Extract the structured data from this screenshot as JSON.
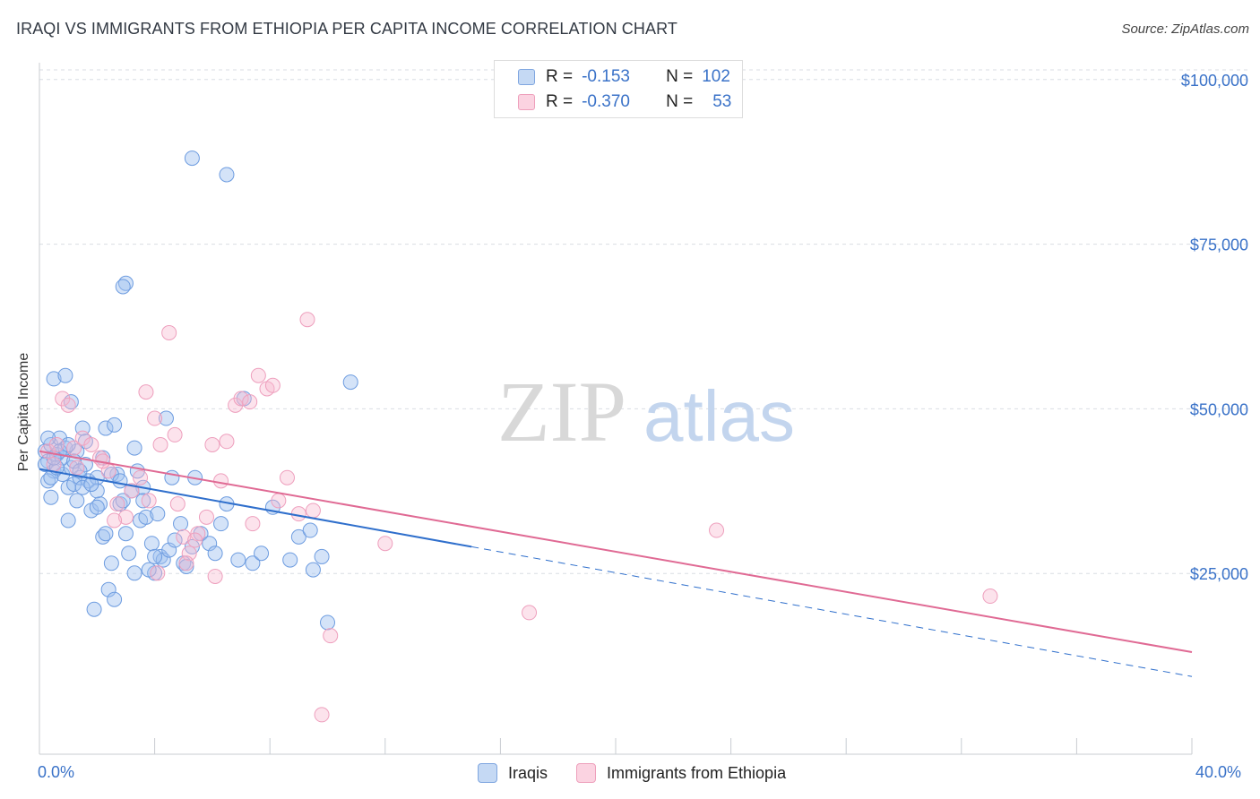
{
  "title": "IRAQI VS IMMIGRANTS FROM ETHIOPIA PER CAPITA INCOME CORRELATION CHART",
  "source": "Source: ZipAtlas.com",
  "watermark": {
    "zip": "ZIP",
    "atlas": "atlas"
  },
  "legend": {
    "series1": {
      "r_label": "R =",
      "r_value": "-0.153",
      "n_label": "N =",
      "n_value": "102"
    },
    "series2": {
      "r_label": "R =",
      "r_value": "-0.370",
      "n_label": "N =",
      "n_value": "53"
    }
  },
  "colors": {
    "iraqi": "#8fb4e8",
    "iraqi_line": "#2f6fcc",
    "ethiopia": "#f4aac4",
    "ethiopia_line": "#e06a94",
    "axis_label": "#3a72c8",
    "grid": "#d9dde3"
  },
  "chart_data": {
    "type": "scatter",
    "title": "IRAQI VS IMMIGRANTS FROM ETHIOPIA PER CAPITA INCOME CORRELATION CHART",
    "xlabel": "",
    "ylabel": "Per Capita Income",
    "xlim": [
      0,
      40
    ],
    "ylim": [
      0,
      105000
    ],
    "x_tick_labels": [
      "0.0%",
      "40.0%"
    ],
    "y_ticks": [
      25000,
      50000,
      75000,
      100000
    ],
    "y_tick_labels": [
      "$25,000",
      "$50,000",
      "$75,000",
      "$100,000"
    ],
    "legend_bottom": [
      "Iraqis",
      "Immigrants from Ethiopia"
    ],
    "series": [
      {
        "name": "Iraqis",
        "r": -0.153,
        "n": 102,
        "trend": {
          "x0": 0.0,
          "y0": 43300,
          "x1": 15.0,
          "y1": 31500,
          "dash_to_x": 40.0,
          "dash_to_y": 11800
        },
        "points": [
          [
            0.2,
            46000
          ],
          [
            0.3,
            44500
          ],
          [
            0.4,
            47000
          ],
          [
            0.5,
            43000
          ],
          [
            0.3,
            41500
          ],
          [
            0.6,
            45500
          ],
          [
            0.7,
            48000
          ],
          [
            0.8,
            42500
          ],
          [
            0.5,
            57000
          ],
          [
            0.9,
            57500
          ],
          [
            1.0,
            40500
          ],
          [
            1.1,
            43500
          ],
          [
            1.2,
            41000
          ],
          [
            1.3,
            38500
          ],
          [
            1.0,
            35500
          ],
          [
            1.4,
            42000
          ],
          [
            1.5,
            49500
          ],
          [
            1.1,
            53500
          ],
          [
            1.6,
            44000
          ],
          [
            1.8,
            37000
          ],
          [
            1.7,
            41500
          ],
          [
            2.0,
            42000
          ],
          [
            2.1,
            38000
          ],
          [
            2.2,
            33000
          ],
          [
            1.9,
            22000
          ],
          [
            2.4,
            25000
          ],
          [
            2.5,
            29000
          ],
          [
            2.6,
            23500
          ],
          [
            2.3,
            49500
          ],
          [
            2.7,
            42500
          ],
          [
            2.8,
            38000
          ],
          [
            3.0,
            33500
          ],
          [
            3.1,
            30500
          ],
          [
            3.3,
            27500
          ],
          [
            3.4,
            43000
          ],
          [
            3.5,
            35500
          ],
          [
            3.6,
            40500
          ],
          [
            3.7,
            36000
          ],
          [
            3.9,
            32000
          ],
          [
            4.0,
            27500
          ],
          [
            4.2,
            30000
          ],
          [
            4.3,
            29500
          ],
          [
            4.5,
            31000
          ],
          [
            4.7,
            32500
          ],
          [
            4.9,
            35000
          ],
          [
            5.0,
            29000
          ],
          [
            5.1,
            28500
          ],
          [
            5.3,
            31500
          ],
          [
            5.4,
            42000
          ],
          [
            5.6,
            33500
          ],
          [
            5.9,
            32000
          ],
          [
            6.1,
            30500
          ],
          [
            6.3,
            35000
          ],
          [
            6.5,
            38000
          ],
          [
            6.9,
            29500
          ],
          [
            7.1,
            54000
          ],
          [
            7.4,
            29000
          ],
          [
            7.7,
            30500
          ],
          [
            8.1,
            37500
          ],
          [
            3.0,
            71500
          ],
          [
            2.9,
            71000
          ],
          [
            5.3,
            90500
          ],
          [
            6.5,
            88000
          ],
          [
            4.4,
            51000
          ],
          [
            3.3,
            46500
          ],
          [
            2.6,
            50000
          ],
          [
            1.6,
            47500
          ],
          [
            0.8,
            45000
          ],
          [
            0.4,
            42000
          ],
          [
            1.3,
            46000
          ],
          [
            2.0,
            40000
          ],
          [
            9.0,
            33000
          ],
          [
            9.5,
            28000
          ],
          [
            9.8,
            30000
          ],
          [
            10.0,
            20000
          ],
          [
            9.4,
            34000
          ],
          [
            8.7,
            29500
          ],
          [
            10.8,
            56500
          ],
          [
            0.2,
            44000
          ],
          [
            0.3,
            48000
          ],
          [
            0.6,
            43500
          ],
          [
            0.9,
            46500
          ],
          [
            1.2,
            44500
          ],
          [
            1.5,
            40500
          ],
          [
            1.8,
            41000
          ],
          [
            2.2,
            45000
          ],
          [
            2.5,
            42500
          ],
          [
            2.8,
            41500
          ],
          [
            3.2,
            40000
          ],
          [
            3.6,
            38500
          ],
          [
            4.1,
            36500
          ],
          [
            4.6,
            42000
          ],
          [
            0.7,
            46000
          ],
          [
            1.0,
            47000
          ],
          [
            0.5,
            45000
          ],
          [
            1.4,
            43000
          ],
          [
            2.0,
            37500
          ],
          [
            2.3,
            33500
          ],
          [
            3.8,
            28000
          ],
          [
            4.0,
            30000
          ],
          [
            0.4,
            39000
          ],
          [
            2.9,
            38500
          ]
        ]
      },
      {
        "name": "Immigrants from Ethiopia",
        "r": -0.37,
        "n": 53,
        "trend": {
          "x0": 0.0,
          "y0": 46000,
          "x1": 40.0,
          "y1": 15500
        },
        "points": [
          [
            0.3,
            46000
          ],
          [
            0.5,
            44000
          ],
          [
            0.8,
            54000
          ],
          [
            1.0,
            53000
          ],
          [
            1.2,
            46500
          ],
          [
            1.5,
            48000
          ],
          [
            1.8,
            47000
          ],
          [
            2.1,
            45000
          ],
          [
            2.4,
            43000
          ],
          [
            2.7,
            38000
          ],
          [
            3.0,
            36000
          ],
          [
            3.2,
            40000
          ],
          [
            3.5,
            42000
          ],
          [
            3.7,
            55000
          ],
          [
            4.0,
            51000
          ],
          [
            4.2,
            47000
          ],
          [
            4.5,
            64000
          ],
          [
            4.8,
            38000
          ],
          [
            5.0,
            33000
          ],
          [
            5.2,
            30500
          ],
          [
            5.5,
            33500
          ],
          [
            5.8,
            36000
          ],
          [
            6.0,
            47000
          ],
          [
            6.3,
            41500
          ],
          [
            6.5,
            47500
          ],
          [
            6.8,
            53000
          ],
          [
            7.0,
            54000
          ],
          [
            7.3,
            53500
          ],
          [
            7.6,
            57500
          ],
          [
            7.9,
            55500
          ],
          [
            8.1,
            56000
          ],
          [
            8.3,
            38500
          ],
          [
            8.6,
            42000
          ],
          [
            9.0,
            36500
          ],
          [
            9.3,
            66000
          ],
          [
            9.5,
            37000
          ],
          [
            10.1,
            18000
          ],
          [
            9.8,
            6000
          ],
          [
            12.0,
            32000
          ],
          [
            17.0,
            21500
          ],
          [
            23.5,
            34000
          ],
          [
            33.0,
            24000
          ],
          [
            4.1,
            27500
          ],
          [
            5.1,
            29000
          ],
          [
            6.1,
            27000
          ],
          [
            2.6,
            35500
          ],
          [
            1.3,
            43500
          ],
          [
            0.6,
            47000
          ],
          [
            2.2,
            44500
          ],
          [
            4.7,
            48500
          ],
          [
            3.8,
            38500
          ],
          [
            5.4,
            32500
          ],
          [
            7.4,
            35000
          ]
        ]
      }
    ]
  }
}
